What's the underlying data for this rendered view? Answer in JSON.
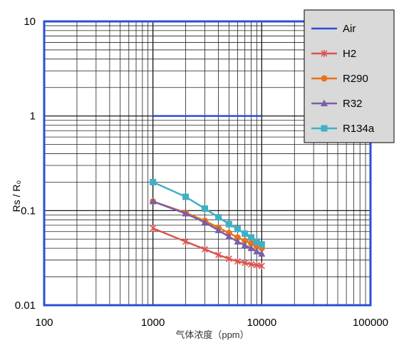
{
  "chart_data": {
    "type": "line",
    "title": "",
    "xlabel": "气体浓度（ppm）",
    "ylabel": "Rs / R₀",
    "x_scale": "log",
    "y_scale": "log",
    "xlim": [
      100,
      100000
    ],
    "ylim": [
      0.01,
      10
    ],
    "x_ticks": [
      "100",
      "1000",
      "10000",
      "100000"
    ],
    "y_ticks": [
      "10",
      "1",
      "0.1",
      "0.01"
    ],
    "grid": true,
    "legend_position": "top-right",
    "series": [
      {
        "name": "Air",
        "color": "#2b4fd6",
        "marker": "none",
        "x": [
          1000,
          10000
        ],
        "y": [
          1.0,
          1.0
        ]
      },
      {
        "name": "H2",
        "color": "#d9534f",
        "marker": "x",
        "x": [
          1000,
          2000,
          3000,
          4000,
          5000,
          6000,
          7000,
          8000,
          9000,
          10000
        ],
        "y": [
          0.065,
          0.047,
          0.039,
          0.034,
          0.031,
          0.029,
          0.028,
          0.027,
          0.0265,
          0.026
        ]
      },
      {
        "name": "R290",
        "color": "#e8731a",
        "marker": "circle",
        "x": [
          1000,
          2000,
          3000,
          4000,
          5000,
          6000,
          7000,
          8000,
          9000,
          10000
        ],
        "y": [
          0.125,
          0.095,
          0.078,
          0.066,
          0.058,
          0.052,
          0.048,
          0.045,
          0.042,
          0.04
        ]
      },
      {
        "name": "R32",
        "color": "#7b5ea7",
        "marker": "triangle",
        "x": [
          1000,
          2000,
          3000,
          4000,
          5000,
          6000,
          7000,
          8000,
          9000,
          10000
        ],
        "y": [
          0.125,
          0.093,
          0.075,
          0.062,
          0.053,
          0.047,
          0.043,
          0.04,
          0.037,
          0.035
        ]
      },
      {
        "name": "R134a",
        "color": "#3fb0c6",
        "marker": "square",
        "x": [
          1000,
          2000,
          3000,
          4000,
          5000,
          6000,
          7000,
          8000,
          9000,
          10000
        ],
        "y": [
          0.2,
          0.14,
          0.105,
          0.085,
          0.072,
          0.064,
          0.057,
          0.052,
          0.047,
          0.044
        ]
      }
    ]
  }
}
